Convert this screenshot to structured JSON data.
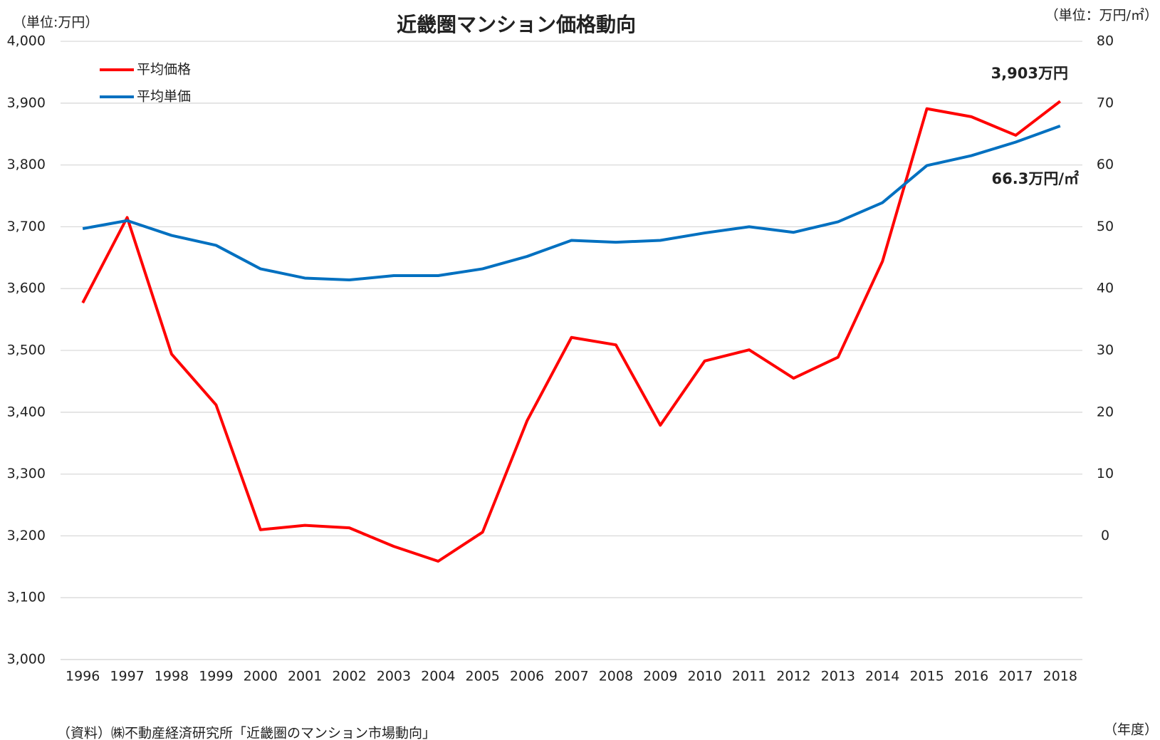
{
  "chart_data": {
    "type": "line",
    "title": "近畿圏マンション価格動向",
    "y_unit_label": "（単位:万円）",
    "y2_unit_label": "（単位：万円/㎡）",
    "x_unit_label": "（年度）",
    "source": "（資料）㈱不動産経済研究所「近畿圏のマンション市場動向」",
    "categories": [
      "1996",
      "1997",
      "1998",
      "1999",
      "2000",
      "2001",
      "2002",
      "2003",
      "2004",
      "2005",
      "2006",
      "2007",
      "2008",
      "2009",
      "2010",
      "2011",
      "2012",
      "2013",
      "2014",
      "2015",
      "2016",
      "2017",
      "2018"
    ],
    "series": [
      {
        "name": "平均価格",
        "color": "#ff0000",
        "axis": "y",
        "values": [
          3577,
          3715,
          3494,
          3412,
          3210,
          3217,
          3213,
          3183,
          3159,
          3206,
          3386,
          3521,
          3509,
          3379,
          3483,
          3501,
          3455,
          3489,
          3644,
          3891,
          3878,
          3848,
          3903
        ]
      },
      {
        "name": "平均単価",
        "color": "#0070c0",
        "axis": "y2",
        "values": [
          49.7,
          51.0,
          48.6,
          47.0,
          43.2,
          41.7,
          41.4,
          42.1,
          42.1,
          43.2,
          45.2,
          47.8,
          47.5,
          47.8,
          49.0,
          50.0,
          49.1,
          50.8,
          53.9,
          59.9,
          61.5,
          63.7,
          66.3
        ]
      }
    ],
    "annotations": [
      "3,903万円",
      "66.3万円/㎡"
    ],
    "ylim": [
      3000,
      4000
    ],
    "yticks": [
      {
        "value": 3000,
        "label": "3,000"
      },
      {
        "value": 3100,
        "label": "3,100"
      },
      {
        "value": 3200,
        "label": "3,200"
      },
      {
        "value": 3300,
        "label": "3,300"
      },
      {
        "value": 3400,
        "label": "3,400"
      },
      {
        "value": 3500,
        "label": "3,500"
      },
      {
        "value": 3600,
        "label": "3,600"
      },
      {
        "value": 3700,
        "label": "3,700"
      },
      {
        "value": 3800,
        "label": "3,800"
      },
      {
        "value": 3900,
        "label": "3,900"
      },
      {
        "value": 4000,
        "label": "4,000"
      }
    ],
    "y2lim": [
      -20,
      80
    ],
    "y2ticks": [
      0,
      10,
      20,
      30,
      40,
      50,
      60,
      70,
      80
    ],
    "grid": true,
    "legend": "upper left"
  }
}
